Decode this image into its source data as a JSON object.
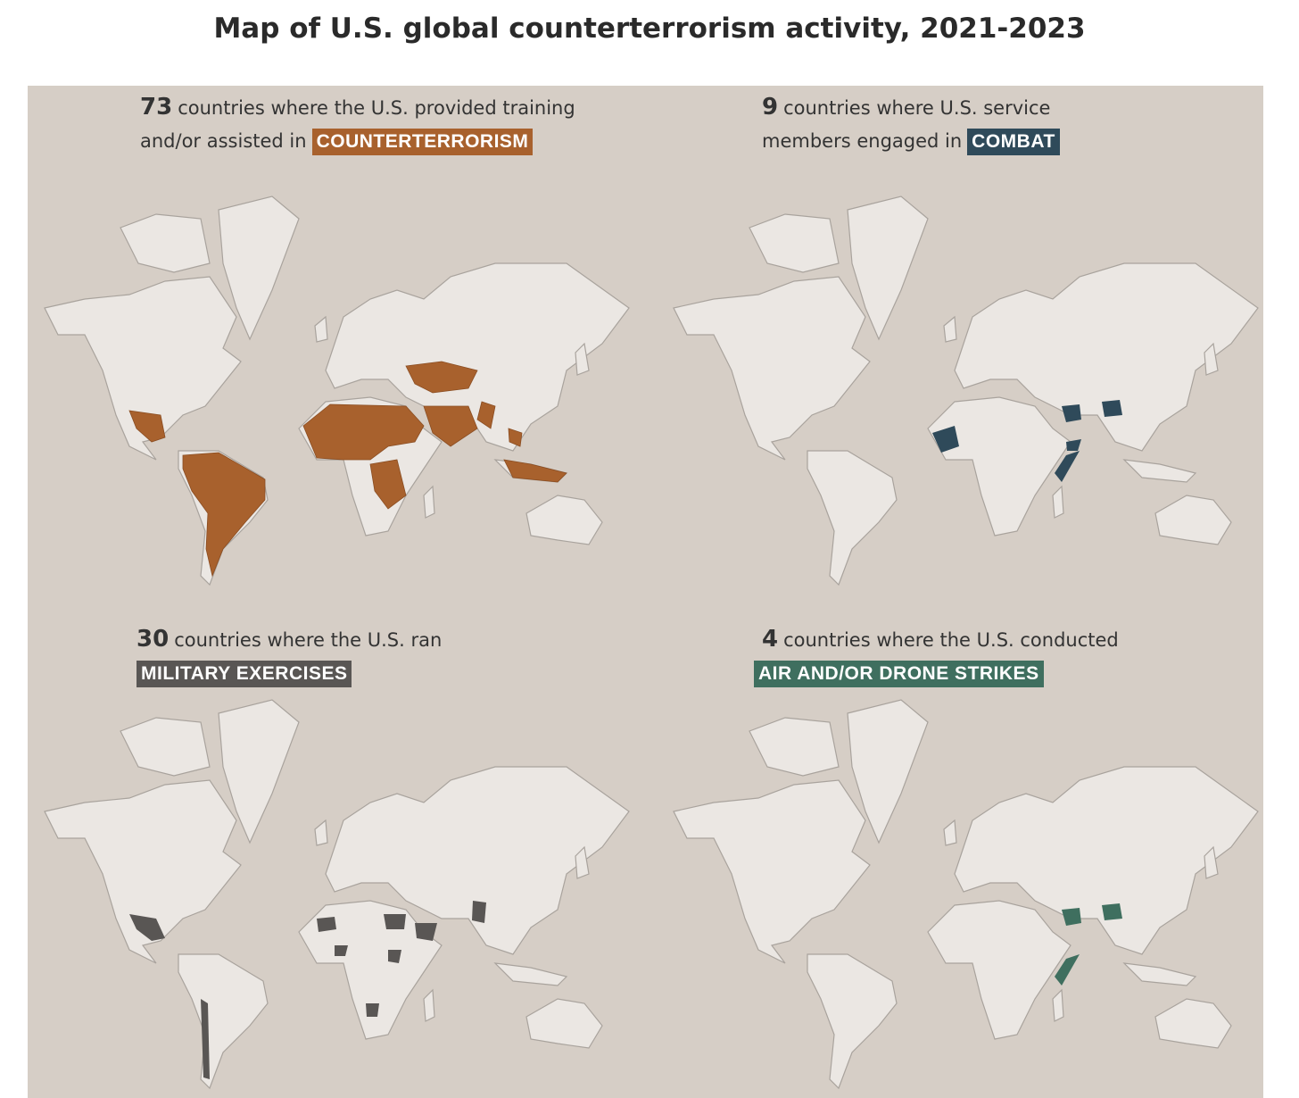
{
  "header": {
    "title": "Map of U.S. global counterterrorism activity, 2021-2023"
  },
  "panels": [
    {
      "count": "73",
      "text": "countries where the U.S. provided training and/or assisted in",
      "label": "COUNTERTERRORISM",
      "color": "#a8612d"
    },
    {
      "count": "9",
      "text": "countries where U.S. service members engaged in",
      "label": "COMBAT",
      "color": "#2f4a5a"
    },
    {
      "count": "30",
      "text": "countries where the U.S. ran",
      "label": "MILITARY EXERCISES",
      "color": "#595654"
    },
    {
      "count": "4",
      "text": "countries where the U.S. conducted",
      "label": "AIR AND/OR DRONE STRIKES",
      "color": "#3f6f5f"
    }
  ]
}
